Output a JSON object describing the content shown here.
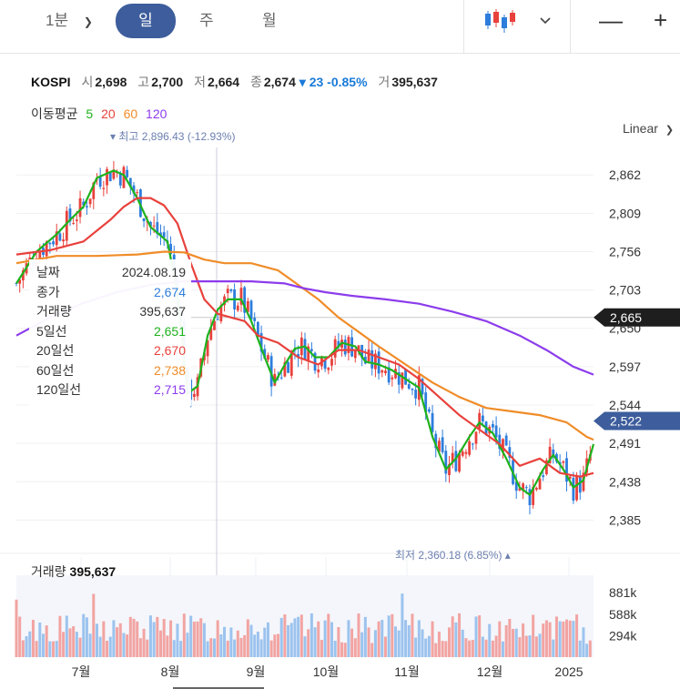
{
  "toolbar": {
    "periods": [
      "1분",
      "일",
      "주",
      "월"
    ],
    "active_period": "일",
    "zoom_out": "—",
    "zoom_in": "+"
  },
  "quote": {
    "symbol": "KOSPI",
    "open_label": "시",
    "open": "2,698",
    "high_label": "고",
    "high": "2,700",
    "low_label": "저",
    "low": "2,664",
    "close_label": "종",
    "close": "2,674",
    "change": "▾ 23 -0.85%",
    "volume_label": "거",
    "volume": "395,637"
  },
  "ma_legend": {
    "label": "이동평균",
    "periods": [
      "5",
      "20",
      "60",
      "120"
    ],
    "colors": [
      "#1db21d",
      "#e8413c",
      "#f08c28",
      "#8c3cec"
    ]
  },
  "scale_button": "Linear",
  "tooltip": {
    "rows": [
      {
        "label": "날짜",
        "value": "2024.08.19",
        "color": "#333333"
      },
      {
        "label": "종가",
        "value": "2,674",
        "color": "#2d7ddc"
      },
      {
        "label": "거래량",
        "value": "395,637",
        "color": "#333333"
      },
      {
        "label": "5일선",
        "value": "2,651",
        "color": "#1db21d"
      },
      {
        "label": "20일선",
        "value": "2,670",
        "color": "#e8413c"
      },
      {
        "label": "60일선",
        "value": "2,738",
        "color": "#f08c28"
      },
      {
        "label": "120일선",
        "value": "2,715",
        "color": "#8c3cec"
      }
    ]
  },
  "volume": {
    "label": "거래량",
    "value": "395,637"
  },
  "chart_data": {
    "type": "candlestick",
    "y_ticks": [
      2862,
      2809,
      2756,
      2703,
      2650,
      2597,
      2544,
      2491,
      2438,
      2385
    ],
    "y_tick_labels": [
      "2,862",
      "2,809",
      "2,756",
      "2,703",
      "2,650",
      "2,597",
      "2,544",
      "2,491",
      "2,438",
      "2,385"
    ],
    "ylim": [
      2349,
      2900
    ],
    "x_labels": [
      "7월",
      "8월",
      "9월",
      "10월",
      "11월",
      "12월",
      "2025"
    ],
    "crosshair_price": "2,665",
    "last_price": "2,522",
    "high_marker": {
      "prefix": "▾ 최고",
      "text": "2,896.43 (-12.93%)",
      "value": 2896.43
    },
    "low_marker": {
      "prefix": "최저",
      "text": "2,360.18 (6.85%) ▴",
      "value": 2360.18
    },
    "volume_ticks": [
      "881k",
      "588k",
      "294k"
    ],
    "volume_tick_values": [
      881,
      588,
      294
    ],
    "volume_max": 1120,
    "series": [
      {
        "name": "5일선",
        "color": "#1db21d",
        "points": [
          [
            0,
            2712
          ],
          [
            6,
            2756
          ],
          [
            12,
            2780
          ],
          [
            16,
            2800
          ],
          [
            20,
            2818
          ],
          [
            24,
            2858
          ],
          [
            29,
            2868
          ],
          [
            32,
            2862
          ],
          [
            36,
            2830
          ],
          [
            40,
            2790
          ],
          [
            45,
            2770
          ],
          [
            48,
            2700
          ],
          [
            51,
            2560
          ],
          [
            54,
            2570
          ],
          [
            57,
            2640
          ],
          [
            60,
            2676
          ],
          [
            63,
            2690
          ],
          [
            67,
            2690
          ],
          [
            70,
            2660
          ],
          [
            74,
            2610
          ],
          [
            77,
            2575
          ],
          [
            80,
            2600
          ],
          [
            83,
            2622
          ],
          [
            86,
            2625
          ],
          [
            89,
            2610
          ],
          [
            93,
            2610
          ],
          [
            97,
            2630
          ],
          [
            101,
            2625
          ],
          [
            104,
            2604
          ],
          [
            108,
            2600
          ],
          [
            112,
            2592
          ],
          [
            116,
            2580
          ],
          [
            120,
            2568
          ],
          [
            124,
            2500
          ],
          [
            128,
            2455
          ],
          [
            131,
            2470
          ],
          [
            135,
            2500
          ],
          [
            138,
            2520
          ],
          [
            142,
            2505
          ],
          [
            146,
            2470
          ],
          [
            150,
            2430
          ],
          [
            153,
            2420
          ],
          [
            157,
            2455
          ],
          [
            160,
            2475
          ],
          [
            163,
            2455
          ],
          [
            166,
            2430
          ],
          [
            169,
            2440
          ],
          [
            172,
            2490
          ]
        ]
      },
      {
        "name": "20일선",
        "color": "#e8413c",
        "points": [
          [
            0,
            2752
          ],
          [
            10,
            2758
          ],
          [
            20,
            2770
          ],
          [
            28,
            2800
          ],
          [
            32,
            2818
          ],
          [
            36,
            2830
          ],
          [
            40,
            2830
          ],
          [
            44,
            2820
          ],
          [
            48,
            2795
          ],
          [
            52,
            2740
          ],
          [
            56,
            2690
          ],
          [
            60,
            2670
          ],
          [
            64,
            2665
          ],
          [
            68,
            2660
          ],
          [
            72,
            2640
          ],
          [
            78,
            2630
          ],
          [
            84,
            2610
          ],
          [
            90,
            2600
          ],
          [
            96,
            2620
          ],
          [
            102,
            2620
          ],
          [
            108,
            2610
          ],
          [
            114,
            2600
          ],
          [
            120,
            2580
          ],
          [
            126,
            2555
          ],
          [
            132,
            2530
          ],
          [
            138,
            2510
          ],
          [
            144,
            2490
          ],
          [
            150,
            2460
          ],
          [
            156,
            2470
          ],
          [
            162,
            2450
          ],
          [
            168,
            2445
          ],
          [
            172,
            2450
          ]
        ]
      },
      {
        "name": "60일선",
        "color": "#f08c28",
        "points": [
          [
            0,
            2740
          ],
          [
            12,
            2750
          ],
          [
            24,
            2750
          ],
          [
            36,
            2752
          ],
          [
            44,
            2756
          ],
          [
            50,
            2755
          ],
          [
            56,
            2745
          ],
          [
            62,
            2740
          ],
          [
            70,
            2740
          ],
          [
            78,
            2730
          ],
          [
            84,
            2710
          ],
          [
            90,
            2690
          ],
          [
            96,
            2665
          ],
          [
            102,
            2645
          ],
          [
            108,
            2625
          ],
          [
            116,
            2600
          ],
          [
            124,
            2575
          ],
          [
            132,
            2555
          ],
          [
            140,
            2540
          ],
          [
            148,
            2535
          ],
          [
            156,
            2530
          ],
          [
            164,
            2520
          ],
          [
            170,
            2500
          ],
          [
            172,
            2496
          ]
        ]
      },
      {
        "name": "120일선",
        "color": "#8c3cec",
        "points": [
          [
            0,
            2640
          ],
          [
            10,
            2665
          ],
          [
            20,
            2685
          ],
          [
            30,
            2700
          ],
          [
            40,
            2710
          ],
          [
            50,
            2715
          ],
          [
            60,
            2715
          ],
          [
            70,
            2715
          ],
          [
            80,
            2712
          ],
          [
            86,
            2705
          ],
          [
            92,
            2700
          ],
          [
            100,
            2695
          ],
          [
            110,
            2690
          ],
          [
            120,
            2684
          ],
          [
            130,
            2673
          ],
          [
            140,
            2660
          ],
          [
            150,
            2640
          ],
          [
            158,
            2620
          ],
          [
            166,
            2597
          ],
          [
            172,
            2586
          ]
        ]
      }
    ]
  }
}
